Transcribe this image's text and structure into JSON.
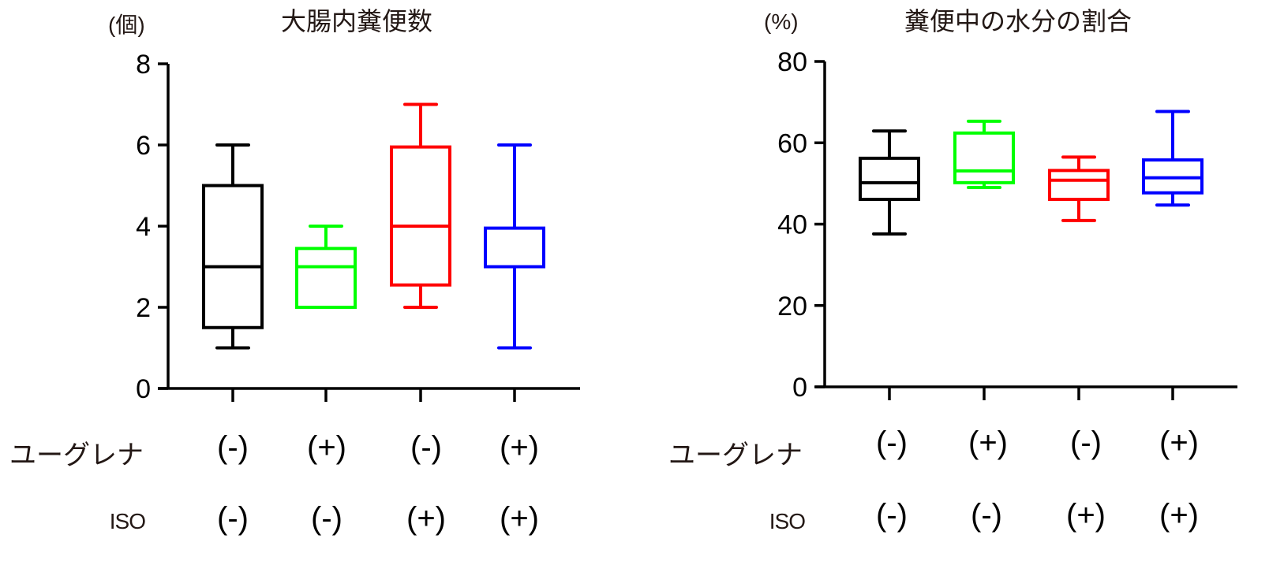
{
  "chart_data": [
    {
      "type": "box",
      "title": "大腸内糞便数",
      "ylabel": "(個)",
      "ylim": [
        0,
        8
      ],
      "yticks": [
        0,
        2,
        4,
        6,
        8
      ],
      "grid": false,
      "categories": [
        {
          "ユーグレナ": "(-)",
          "ISO": "(-)"
        },
        {
          "ユーグレナ": "(+)",
          "ISO": "(-)"
        },
        {
          "ユーグレナ": "(-)",
          "ISO": "(+)"
        },
        {
          "ユーグレナ": "(+)",
          "ISO": "(+)"
        }
      ],
      "series": [
        {
          "name": "ユーグレナ(-) ISO(-)",
          "color": "#000000",
          "min": 1.0,
          "q1": 1.5,
          "median": 3.0,
          "q3": 5.0,
          "max": 6.0
        },
        {
          "name": "ユーグレナ(+) ISO(-)",
          "color": "#00ff00",
          "min": 2.0,
          "q1": 2.0,
          "median": 3.0,
          "q3": 3.45,
          "max": 4.0
        },
        {
          "name": "ユーグレナ(-) ISO(+)",
          "color": "#ff0000",
          "min": 2.0,
          "q1": 2.55,
          "median": 4.0,
          "q3": 5.95,
          "max": 7.0
        },
        {
          "name": "ユーグレナ(+) ISO(+)",
          "color": "#0000ff",
          "min": 1.0,
          "q1": 3.0,
          "median": 3.0,
          "q3": 3.95,
          "max": 6.0
        }
      ]
    },
    {
      "type": "box",
      "title": "糞便中の水分の割合",
      "ylabel": "(%)",
      "ylim": [
        0,
        80
      ],
      "yticks": [
        0,
        20,
        40,
        60,
        80
      ],
      "grid": false,
      "categories": [
        {
          "ユーグレナ": "(-)",
          "ISO": "(-)"
        },
        {
          "ユーグレナ": "(+)",
          "ISO": "(-)"
        },
        {
          "ユーグレナ": "(-)",
          "ISO": "(+)"
        },
        {
          "ユーグレナ": "(+)",
          "ISO": "(+)"
        }
      ],
      "series": [
        {
          "name": "ユーグレナ(-) ISO(-)",
          "color": "#000000",
          "min": 37.6,
          "q1": 46.1,
          "median": 50.2,
          "q3": 56.2,
          "max": 62.9
        },
        {
          "name": "ユーグレナ(+) ISO(-)",
          "color": "#00ff00",
          "min": 49.0,
          "q1": 50.2,
          "median": 53.1,
          "q3": 62.4,
          "max": 65.3
        },
        {
          "name": "ユーグレナ(-) ISO(+)",
          "color": "#ff0000",
          "min": 40.9,
          "q1": 46.1,
          "median": 50.8,
          "q3": 53.2,
          "max": 56.5
        },
        {
          "name": "ユーグレナ(+) ISO(+)",
          "color": "#0000ff",
          "min": 44.7,
          "q1": 47.7,
          "median": 51.4,
          "q3": 55.8,
          "max": 67.7
        }
      ]
    }
  ],
  "left": {
    "title": "大腸内糞便数",
    "unit": "(個)",
    "ticks": [
      "0",
      "2",
      "4",
      "6",
      "8"
    ],
    "row1_label": "ユーグレナ",
    "row2_label": "ISO",
    "row1": [
      "(-)",
      "(+)",
      "(-)",
      "(+)"
    ],
    "row2": [
      "(-)",
      "(-)",
      "(+)",
      "(+)"
    ]
  },
  "right": {
    "title": "糞便中の水分の割合",
    "unit": "(%)",
    "ticks": [
      "0",
      "20",
      "40",
      "60",
      "80"
    ],
    "row1_label": "ユーグレナ",
    "row2_label": "ISO",
    "row1": [
      "(-)",
      "(+)",
      "(-)",
      "(+)"
    ],
    "row2": [
      "(-)",
      "(-)",
      "(+)",
      "(+)"
    ]
  },
  "colors": {
    "group1": "#000000",
    "group2": "#00ff00",
    "group3": "#ff0000",
    "group4": "#0000ff",
    "label_text": "#231815"
  }
}
